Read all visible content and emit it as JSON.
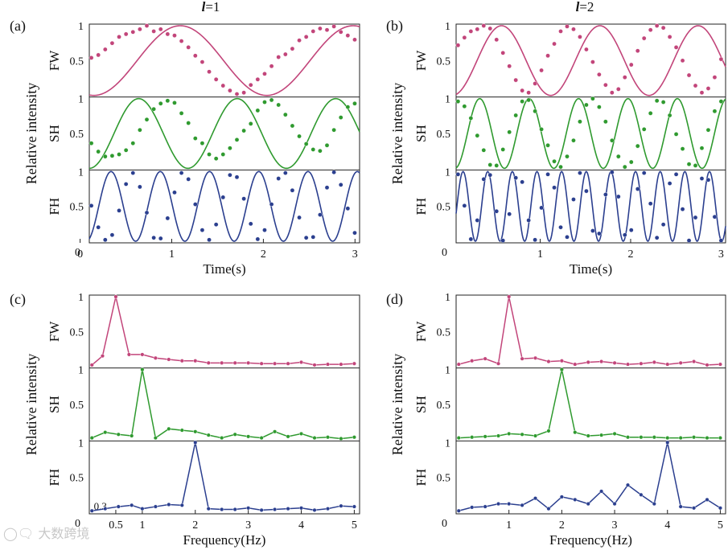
{
  "watermark": "大数跨境",
  "colors": {
    "FW": "#c2457a",
    "SH": "#2f9a2f",
    "FH": "#2b3f8f"
  },
  "shared": {
    "ylabel": "Relative intensity",
    "channels": [
      "FW",
      "SH",
      "FH"
    ]
  },
  "chart_data": [
    {
      "id": "a",
      "type": "scatter",
      "panel_label": "(a)",
      "title": "l=1",
      "title_italic": "l",
      "title_rest": "=1",
      "xlabel": "Time(s)",
      "xlim": [
        0.1,
        3.05
      ],
      "x_ticks": [
        {
          "v": 0,
          "label": "0"
        },
        {
          "v": 1,
          "label": "1"
        },
        {
          "v": 2,
          "label": "2"
        },
        {
          "v": 3,
          "label": "3"
        }
      ],
      "y_ticks": [
        {
          "v": 1,
          "label": "1"
        },
        {
          "v": 0.5,
          "label": "0.5"
        }
      ],
      "bottom_zero_label": "0",
      "ylim": [
        0,
        1
      ],
      "series": [
        {
          "name": "FW",
          "fit_freq": 0.53,
          "fit_phase": -0.5,
          "points": [
            0.54,
            0.58,
            0.66,
            0.75,
            0.84,
            0.88,
            0.91,
            0.95,
            1.0,
            0.92,
            0.95,
            0.88,
            0.86,
            0.78,
            0.69,
            0.57,
            0.48,
            0.34,
            0.23,
            0.14,
            0.07,
            0.02,
            0.04,
            0.15,
            0.23,
            0.31,
            0.42,
            0.55,
            0.59,
            0.67,
            0.79,
            0.84,
            0.92,
            0.96,
            0.94,
            0.99,
            0.91,
            0.86,
            0.8
          ]
        },
        {
          "name": "SH",
          "fit_freq": 0.93,
          "fit_phase": -0.59,
          "points": [
            0.36,
            0.24,
            0.17,
            0.18,
            0.2,
            0.26,
            0.36,
            0.55,
            0.7,
            0.85,
            0.93,
            0.97,
            0.94,
            0.79,
            0.65,
            0.43,
            0.36,
            0.2,
            0.14,
            0.2,
            0.29,
            0.41,
            0.54,
            0.64,
            0.83,
            0.95,
            0.98,
            0.91,
            0.77,
            0.61,
            0.46,
            0.35,
            0.27,
            0.25,
            0.33,
            0.55,
            0.73,
            0.88,
            0.93
          ]
        },
        {
          "name": "FH",
          "fit_freq": 1.86,
          "fit_phase": -0.8,
          "points": [
            0.51,
            0.2,
            0.02,
            0.09,
            0.44,
            0.82,
            0.98,
            0.78,
            0.41,
            0.05,
            0.04,
            0.33,
            0.7,
            0.98,
            0.89,
            0.53,
            0.16,
            0.02,
            0.24,
            0.63,
            0.95,
            0.92,
            0.61,
            0.25,
            0.03,
            0.16,
            0.53,
            0.9,
            0.98,
            0.73,
            0.34,
            0.05,
            0.06,
            0.38,
            0.77,
            0.99,
            0.81,
            0.47,
            0.12
          ]
        }
      ]
    },
    {
      "id": "b",
      "type": "scatter",
      "panel_label": "(b)",
      "title": "l=2",
      "title_italic": "l",
      "title_rest": "=2",
      "xlabel": "Time(s)",
      "xlim": [
        0.07,
        3.05
      ],
      "x_ticks": [
        {
          "v": 1,
          "label": "1"
        },
        {
          "v": 2,
          "label": "2"
        },
        {
          "v": 3,
          "label": "3"
        }
      ],
      "y_ticks": [
        {
          "v": 1,
          "label": "1"
        },
        {
          "v": 0.5,
          "label": "0.5"
        }
      ],
      "bottom_zero_label": "0",
      "ylim": [
        0,
        1
      ],
      "series": [
        {
          "name": "FW",
          "fit_freq": 0.92,
          "fit_phase": -0.17,
          "points": [
            0.72,
            0.83,
            0.92,
            0.95,
            1.0,
            0.96,
            0.8,
            0.61,
            0.42,
            0.22,
            0.07,
            0.04,
            0.17,
            0.36,
            0.57,
            0.74,
            0.92,
            0.99,
            0.95,
            0.84,
            0.66,
            0.48,
            0.3,
            0.15,
            0.04,
            0.09,
            0.26,
            0.44,
            0.64,
            0.82,
            0.94,
            1.0,
            0.97,
            0.84,
            0.69,
            0.5,
            0.29,
            0.14,
            0.04,
            0.1,
            0.26,
            0.52
          ]
        },
        {
          "name": "SH",
          "fit_freq": 1.83,
          "fit_phase": -0.67,
          "points": [
            0.96,
            0.89,
            0.72,
            0.47,
            0.26,
            0.05,
            0.04,
            0.27,
            0.52,
            0.76,
            0.96,
            0.98,
            0.82,
            0.56,
            0.33,
            0.1,
            0.02,
            0.17,
            0.4,
            0.67,
            0.91,
            1.0,
            0.88,
            0.67,
            0.4,
            0.17,
            0.02,
            0.09,
            0.32,
            0.56,
            0.79,
            0.97,
            0.95,
            0.76,
            0.49,
            0.28,
            0.06,
            0.04,
            0.29,
            0.55,
            0.82,
            0.96
          ]
        },
        {
          "name": "FH",
          "fit_freq": 3.67,
          "fit_phase": -0.25,
          "points": [
            0.96,
            0.51,
            0.03,
            0.3,
            0.89,
            0.95,
            0.43,
            0.01,
            0.39,
            0.91,
            0.85,
            0.3,
            0.02,
            0.48,
            0.96,
            0.77,
            0.2,
            0.06,
            0.6,
            0.98,
            0.72,
            0.15,
            0.11,
            0.67,
            0.99,
            0.64,
            0.09,
            0.16,
            0.75,
            0.98,
            0.54,
            0.05,
            0.24,
            0.83,
            0.96,
            0.46,
            0.01,
            0.34,
            0.9,
            0.88,
            0.35,
            0.01
          ]
        }
      ]
    },
    {
      "id": "c",
      "type": "line",
      "panel_label": "(c)",
      "xlabel": "Frequency(Hz)",
      "xlim": [
        0,
        5.1
      ],
      "x_ticks": [
        {
          "v": 0.5,
          "label": "0.5"
        },
        {
          "v": 1,
          "label": "1"
        },
        {
          "v": 2,
          "label": "2"
        },
        {
          "v": 3,
          "label": "3"
        },
        {
          "v": 4,
          "label": "4"
        },
        {
          "v": 5,
          "label": "5"
        }
      ],
      "extra_x_labels": [
        {
          "v": 0.3,
          "label": "0.3"
        }
      ],
      "y_ticks": [
        {
          "v": 1,
          "label": "1"
        },
        {
          "v": 0.5,
          "label": "0.5"
        }
      ],
      "bottom_zero_label": "0",
      "ylim": [
        0,
        1
      ],
      "series": [
        {
          "name": "FW",
          "x": [
            0.05,
            0.25,
            0.5,
            0.75,
            1.0,
            1.25,
            1.5,
            1.75,
            2.0,
            2.25,
            2.5,
            2.75,
            3.0,
            3.25,
            3.5,
            3.75,
            4.0,
            4.25,
            4.5,
            4.75,
            5.0
          ],
          "y": [
            0.02,
            0.15,
            1.0,
            0.17,
            0.17,
            0.12,
            0.1,
            0.08,
            0.08,
            0.05,
            0.05,
            0.05,
            0.05,
            0.04,
            0.04,
            0.04,
            0.06,
            0.02,
            0.03,
            0.03,
            0.04
          ]
        },
        {
          "name": "SH",
          "x": [
            0.05,
            0.3,
            0.55,
            0.8,
            1.0,
            1.25,
            1.5,
            1.75,
            2.0,
            2.25,
            2.5,
            2.75,
            3.0,
            3.25,
            3.5,
            3.75,
            4.0,
            4.25,
            4.5,
            4.75,
            5.0
          ],
          "y": [
            0.02,
            0.1,
            0.07,
            0.05,
            1.0,
            0.02,
            0.15,
            0.13,
            0.11,
            0.06,
            0.02,
            0.07,
            0.04,
            0.02,
            0.11,
            0.04,
            0.08,
            0.02,
            0.03,
            0.01,
            0.03
          ]
        },
        {
          "name": "FH",
          "x": [
            0.05,
            0.3,
            0.55,
            0.8,
            1.0,
            1.25,
            1.5,
            1.75,
            2.0,
            2.25,
            2.5,
            2.75,
            3.0,
            3.25,
            3.5,
            3.75,
            4.0,
            4.25,
            4.5,
            4.75,
            5.0
          ],
          "y": [
            0.02,
            0.05,
            0.08,
            0.1,
            0.05,
            0.08,
            0.11,
            0.1,
            1.0,
            0.05,
            0.04,
            0.04,
            0.06,
            0.03,
            0.04,
            0.05,
            0.06,
            0.03,
            0.05,
            0.09,
            0.08
          ]
        }
      ]
    },
    {
      "id": "d",
      "type": "line",
      "panel_label": "(d)",
      "xlabel": "Frequency(Hz)",
      "xlim": [
        0,
        5.1
      ],
      "x_ticks": [
        {
          "v": 1,
          "label": "1"
        },
        {
          "v": 2,
          "label": "2"
        },
        {
          "v": 3,
          "label": "3"
        },
        {
          "v": 4,
          "label": "4"
        },
        {
          "v": 5,
          "label": "5"
        }
      ],
      "y_ticks": [
        {
          "v": 1,
          "label": "1"
        },
        {
          "v": 0.5,
          "label": "0.5"
        }
      ],
      "bottom_zero_label": "0",
      "ylim": [
        0,
        1
      ],
      "series": [
        {
          "name": "FW",
          "x": [
            0.05,
            0.3,
            0.55,
            0.8,
            1.0,
            1.25,
            1.5,
            1.75,
            2.0,
            2.25,
            2.5,
            2.75,
            3.0,
            3.25,
            3.5,
            3.75,
            4.0,
            4.25,
            4.5,
            4.75,
            5.0
          ],
          "y": [
            0.03,
            0.08,
            0.11,
            0.04,
            1.0,
            0.11,
            0.12,
            0.07,
            0.08,
            0.03,
            0.06,
            0.07,
            0.05,
            0.03,
            0.04,
            0.06,
            0.03,
            0.05,
            0.07,
            0.02,
            0.03
          ]
        },
        {
          "name": "SH",
          "x": [
            0.05,
            0.3,
            0.55,
            0.8,
            1.0,
            1.25,
            1.5,
            1.75,
            2.0,
            2.25,
            2.5,
            2.75,
            3.0,
            3.25,
            3.5,
            3.75,
            4.0,
            4.25,
            4.5,
            4.75,
            5.0
          ],
          "y": [
            0.02,
            0.03,
            0.04,
            0.05,
            0.08,
            0.07,
            0.05,
            0.12,
            1.0,
            0.1,
            0.05,
            0.06,
            0.08,
            0.03,
            0.03,
            0.03,
            0.02,
            0.02,
            0.03,
            0.02,
            0.02
          ]
        },
        {
          "name": "FH",
          "x": [
            0.05,
            0.3,
            0.55,
            0.8,
            1.0,
            1.25,
            1.5,
            1.75,
            2.0,
            2.25,
            2.5,
            2.75,
            3.0,
            3.25,
            3.5,
            3.75,
            4.0,
            4.25,
            4.5,
            4.75,
            5.0
          ],
          "y": [
            0.02,
            0.07,
            0.08,
            0.12,
            0.12,
            0.1,
            0.2,
            0.05,
            0.22,
            0.18,
            0.12,
            0.3,
            0.12,
            0.39,
            0.25,
            0.12,
            1.0,
            0.08,
            0.06,
            0.18,
            0.06
          ]
        }
      ]
    }
  ]
}
